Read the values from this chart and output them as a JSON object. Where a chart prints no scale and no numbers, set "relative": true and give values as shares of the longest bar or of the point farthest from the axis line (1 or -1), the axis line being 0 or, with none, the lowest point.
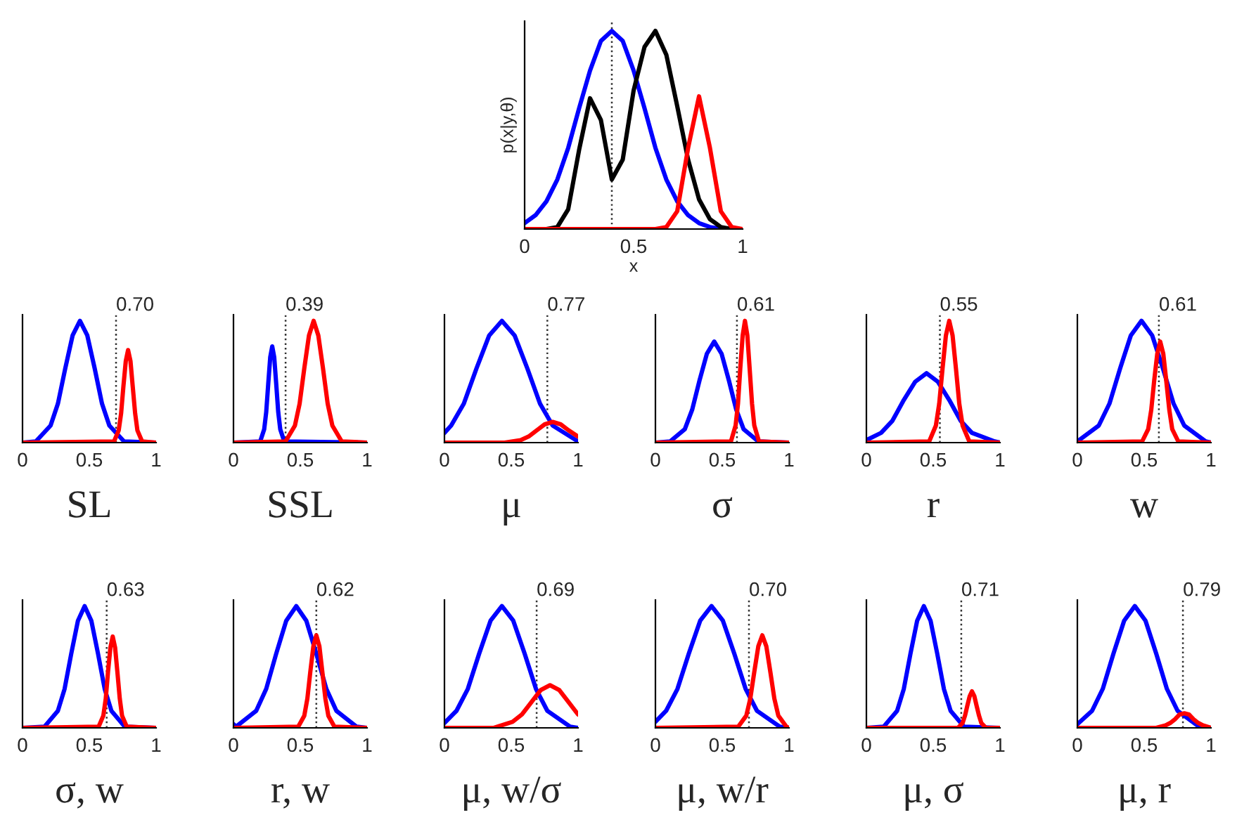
{
  "chart_data": [
    {
      "type": "line",
      "relative": true,
      "ylabel": "p(x|y,θ)",
      "xlabel": "x",
      "xlim": [
        0,
        1
      ],
      "xticks": [
        0,
        0.5,
        1
      ],
      "grid": false,
      "ref_lines": [
        {
          "axis": "x",
          "value": 0.4,
          "line_style": "dotted"
        }
      ],
      "series": [
        {
          "color": "#0000ff",
          "x": [
            0,
            0.05,
            0.1,
            0.15,
            0.2,
            0.25,
            0.3,
            0.35,
            0.4,
            0.45,
            0.5,
            0.55,
            0.6,
            0.65,
            0.7,
            0.75,
            0.8,
            0.85,
            0.9,
            0.95,
            1
          ],
          "values": [
            0.03,
            0.07,
            0.14,
            0.25,
            0.41,
            0.61,
            0.8,
            0.95,
            1,
            0.95,
            0.8,
            0.61,
            0.41,
            0.25,
            0.14,
            0.07,
            0.03,
            0.01,
            0,
            0,
            0
          ]
        },
        {
          "color": "#000000",
          "x": [
            0,
            0.05,
            0.1,
            0.15,
            0.2,
            0.25,
            0.3,
            0.35,
            0.4,
            0.45,
            0.5,
            0.55,
            0.6,
            0.65,
            0.7,
            0.75,
            0.8,
            0.85,
            0.9,
            0.95,
            1
          ],
          "values": [
            0,
            0,
            0,
            0.01,
            0.1,
            0.4,
            0.66,
            0.55,
            0.25,
            0.35,
            0.7,
            0.92,
            1,
            0.88,
            0.62,
            0.35,
            0.15,
            0.05,
            0.01,
            0,
            0
          ]
        },
        {
          "color": "#ff0000",
          "x": [
            0,
            0.6,
            0.65,
            0.7,
            0.75,
            0.8,
            0.85,
            0.9,
            0.95,
            1
          ],
          "values": [
            0,
            0,
            0.01,
            0.09,
            0.41,
            0.67,
            0.41,
            0.09,
            0.01,
            0
          ]
        }
      ]
    },
    {
      "type": "line",
      "relative": true,
      "xlabel": "SL",
      "xlim": [
        0,
        1
      ],
      "xticks": [
        0,
        0.5,
        1
      ],
      "grid": false,
      "ref_lines": [
        {
          "axis": "x",
          "value": 0.7,
          "label": "0.70",
          "line_style": "dotted"
        }
      ],
      "series": [
        {
          "color": "#0000ff",
          "x": [
            0,
            0.1,
            0.21,
            0.265,
            0.32,
            0.375,
            0.43,
            0.485,
            0.54,
            0.595,
            0.65,
            0.76,
            1
          ],
          "values": [
            0,
            0.01,
            0.14,
            0.32,
            0.61,
            0.88,
            1,
            0.88,
            0.61,
            0.32,
            0.14,
            0.01,
            0
          ]
        },
        {
          "color": "#ff0000",
          "x": [
            0,
            0.685,
            0.72,
            0.738,
            0.755,
            0.773,
            0.79,
            0.808,
            0.825,
            0.843,
            0.86,
            0.895,
            1
          ],
          "values": [
            0,
            0.01,
            0.1,
            0.24,
            0.46,
            0.67,
            0.76,
            0.67,
            0.46,
            0.24,
            0.1,
            0.01,
            0
          ]
        }
      ]
    },
    {
      "type": "line",
      "relative": true,
      "xlabel": "SSL",
      "xlim": [
        0,
        1
      ],
      "xticks": [
        0,
        0.5,
        1
      ],
      "grid": false,
      "ref_lines": [
        {
          "axis": "x",
          "value": 0.39,
          "label": "0.39",
          "line_style": "dotted"
        }
      ],
      "series": [
        {
          "color": "#0000ff",
          "x": [
            0,
            0.2,
            0.23,
            0.245,
            0.26,
            0.275,
            0.29,
            0.305,
            0.32,
            0.335,
            0.35,
            0.38,
            1
          ],
          "values": [
            0,
            0.01,
            0.11,
            0.25,
            0.48,
            0.7,
            0.79,
            0.7,
            0.48,
            0.25,
            0.11,
            0.01,
            0
          ]
        },
        {
          "color": "#ff0000",
          "x": [
            0,
            0.39,
            0.46,
            0.495,
            0.53,
            0.565,
            0.6,
            0.635,
            0.67,
            0.705,
            0.74,
            0.81,
            1
          ],
          "values": [
            0,
            0.01,
            0.14,
            0.32,
            0.61,
            0.88,
            1,
            0.88,
            0.61,
            0.32,
            0.14,
            0.01,
            0
          ]
        }
      ]
    },
    {
      "type": "line",
      "relative": true,
      "xlabel": "μ",
      "xlim": [
        0,
        1
      ],
      "xticks": [
        0,
        0.5,
        1
      ],
      "grid": false,
      "ref_lines": [
        {
          "axis": "x",
          "value": 0.77,
          "label": "0.77",
          "line_style": "dotted"
        }
      ],
      "series": [
        {
          "color": "#0000ff",
          "x": [
            0,
            0.05,
            0.145,
            0.24,
            0.335,
            0.43,
            0.525,
            0.62,
            0.715,
            0.81,
            1
          ],
          "values": [
            0.08,
            0.14,
            0.32,
            0.61,
            0.88,
            1,
            0.88,
            0.61,
            0.32,
            0.14,
            0.01
          ]
        },
        {
          "color": "#ff0000",
          "x": [
            0,
            0.45,
            0.57,
            0.63,
            0.69,
            0.75,
            0.81,
            0.87,
            0.93,
            1
          ],
          "values": [
            0,
            0,
            0.02,
            0.05,
            0.1,
            0.15,
            0.17,
            0.15,
            0.1,
            0.05
          ]
        }
      ]
    },
    {
      "type": "line",
      "relative": true,
      "xlabel": "σ",
      "xlim": [
        0,
        1
      ],
      "xticks": [
        0,
        0.5,
        1
      ],
      "grid": false,
      "ref_lines": [
        {
          "axis": "x",
          "value": 0.61,
          "label": "0.61",
          "line_style": "dotted"
        }
      ],
      "series": [
        {
          "color": "#0000ff",
          "x": [
            0,
            0.11,
            0.22,
            0.275,
            0.33,
            0.385,
            0.44,
            0.495,
            0.55,
            0.605,
            0.66,
            0.77,
            1
          ],
          "values": [
            0,
            0.01,
            0.11,
            0.27,
            0.51,
            0.73,
            0.83,
            0.73,
            0.51,
            0.27,
            0.11,
            0.01,
            0
          ]
        },
        {
          "color": "#ff0000",
          "x": [
            0,
            0.565,
            0.6,
            0.618,
            0.635,
            0.653,
            0.67,
            0.688,
            0.705,
            0.723,
            0.74,
            0.775,
            1
          ],
          "values": [
            0,
            0.01,
            0.14,
            0.32,
            0.61,
            0.88,
            1,
            0.88,
            0.61,
            0.32,
            0.14,
            0.01,
            0
          ]
        }
      ]
    },
    {
      "type": "line",
      "relative": true,
      "xlabel": "r",
      "xlim": [
        0,
        1
      ],
      "xticks": [
        0,
        0.5,
        1
      ],
      "grid": false,
      "ref_lines": [
        {
          "axis": "x",
          "value": 0.55,
          "label": "0.55",
          "line_style": "dotted"
        }
      ],
      "series": [
        {
          "color": "#0000ff",
          "x": [
            0,
            0.11,
            0.195,
            0.28,
            0.365,
            0.45,
            0.535,
            0.62,
            0.705,
            0.79,
            0.96,
            1
          ],
          "values": [
            0.02,
            0.08,
            0.18,
            0.35,
            0.5,
            0.57,
            0.5,
            0.35,
            0.18,
            0.08,
            0.01,
            0
          ]
        },
        {
          "color": "#ff0000",
          "x": [
            0,
            0.47,
            0.52,
            0.545,
            0.57,
            0.595,
            0.62,
            0.645,
            0.67,
            0.695,
            0.72,
            0.77,
            1
          ],
          "values": [
            0,
            0.01,
            0.14,
            0.32,
            0.61,
            0.88,
            1,
            0.88,
            0.61,
            0.32,
            0.14,
            0.01,
            0
          ]
        }
      ]
    },
    {
      "type": "line",
      "relative": true,
      "xlabel": "w",
      "xlim": [
        0,
        1
      ],
      "xticks": [
        0,
        0.5,
        1
      ],
      "grid": false,
      "ref_lines": [
        {
          "axis": "x",
          "value": 0.61,
          "label": "0.61",
          "line_style": "dotted"
        }
      ],
      "series": [
        {
          "color": "#0000ff",
          "x": [
            0,
            0.16,
            0.24,
            0.32,
            0.4,
            0.48,
            0.56,
            0.64,
            0.72,
            0.8,
            0.96,
            1
          ],
          "values": [
            0.01,
            0.14,
            0.32,
            0.61,
            0.88,
            1,
            0.88,
            0.61,
            0.32,
            0.14,
            0.01,
            0
          ]
        },
        {
          "color": "#ff0000",
          "x": [
            0,
            0.485,
            0.53,
            0.553,
            0.575,
            0.598,
            0.62,
            0.643,
            0.665,
            0.688,
            0.71,
            0.755,
            1
          ],
          "values": [
            0,
            0.01,
            0.11,
            0.27,
            0.51,
            0.73,
            0.83,
            0.73,
            0.51,
            0.27,
            0.11,
            0.01,
            0
          ]
        }
      ]
    },
    {
      "type": "line",
      "relative": true,
      "xlabel": "σ, w",
      "xlim": [
        0,
        1
      ],
      "xticks": [
        0,
        0.5,
        1
      ],
      "grid": false,
      "ref_lines": [
        {
          "axis": "x",
          "value": 0.63,
          "label": "0.63",
          "line_style": "dotted"
        }
      ],
      "series": [
        {
          "color": "#0000ff",
          "x": [
            0,
            0.165,
            0.265,
            0.315,
            0.365,
            0.415,
            0.465,
            0.515,
            0.565,
            0.615,
            0.665,
            0.765,
            1
          ],
          "values": [
            0,
            0.01,
            0.14,
            0.32,
            0.61,
            0.88,
            1,
            0.88,
            0.61,
            0.32,
            0.14,
            0.01,
            0
          ]
        },
        {
          "color": "#ff0000",
          "x": [
            0,
            0.57,
            0.605,
            0.623,
            0.64,
            0.658,
            0.675,
            0.693,
            0.71,
            0.728,
            0.745,
            0.78,
            1
          ],
          "values": [
            0,
            0.01,
            0.1,
            0.24,
            0.46,
            0.66,
            0.75,
            0.66,
            0.46,
            0.24,
            0.1,
            0.01,
            0
          ]
        }
      ]
    },
    {
      "type": "line",
      "relative": true,
      "xlabel": "r, w",
      "xlim": [
        0,
        1
      ],
      "xticks": [
        0,
        0.5,
        1
      ],
      "grid": false,
      "ref_lines": [
        {
          "axis": "x",
          "value": 0.62,
          "label": "0.62",
          "line_style": "dotted"
        }
      ],
      "series": [
        {
          "color": "#0000ff",
          "x": [
            0,
            0.02,
            0.17,
            0.245,
            0.32,
            0.395,
            0.47,
            0.545,
            0.62,
            0.695,
            0.77,
            0.92,
            1
          ],
          "values": [
            0.03,
            0.01,
            0.14,
            0.32,
            0.61,
            0.88,
            1,
            0.88,
            0.61,
            0.32,
            0.14,
            0.01,
            0
          ]
        },
        {
          "color": "#ff0000",
          "x": [
            0,
            0.485,
            0.53,
            0.553,
            0.575,
            0.598,
            0.62,
            0.643,
            0.665,
            0.688,
            0.71,
            0.755,
            1
          ],
          "values": [
            0,
            0.01,
            0.1,
            0.24,
            0.46,
            0.67,
            0.76,
            0.67,
            0.46,
            0.24,
            0.1,
            0.01,
            0
          ]
        }
      ]
    },
    {
      "type": "line",
      "relative": true,
      "xlabel": "μ, w/σ",
      "xlim": [
        0,
        1
      ],
      "xticks": [
        0,
        0.5,
        1
      ],
      "grid": false,
      "ref_lines": [
        {
          "axis": "x",
          "value": 0.69,
          "label": "0.69",
          "line_style": "dotted"
        }
      ],
      "series": [
        {
          "color": "#0000ff",
          "x": [
            0,
            0.09,
            0.175,
            0.26,
            0.345,
            0.43,
            0.515,
            0.6,
            0.685,
            0.77,
            0.94,
            1
          ],
          "values": [
            0.04,
            0.14,
            0.32,
            0.61,
            0.88,
            1,
            0.88,
            0.61,
            0.32,
            0.14,
            0.01,
            0
          ]
        },
        {
          "color": "#ff0000",
          "x": [
            0,
            0.37,
            0.51,
            0.58,
            0.65,
            0.72,
            0.79,
            0.86,
            0.93,
            1
          ],
          "values": [
            0,
            0,
            0.05,
            0.11,
            0.21,
            0.31,
            0.35,
            0.31,
            0.21,
            0.11
          ]
        }
      ]
    },
    {
      "type": "line",
      "relative": true,
      "xlabel": "μ, w/r",
      "xlim": [
        0,
        1
      ],
      "xticks": [
        0,
        0.5,
        1
      ],
      "grid": false,
      "ref_lines": [
        {
          "axis": "x",
          "value": 0.7,
          "label": "0.70",
          "line_style": "dotted"
        }
      ],
      "series": [
        {
          "color": "#0000ff",
          "x": [
            0,
            0.08,
            0.165,
            0.25,
            0.335,
            0.42,
            0.505,
            0.59,
            0.675,
            0.76,
            0.93,
            1
          ],
          "values": [
            0.05,
            0.14,
            0.32,
            0.61,
            0.88,
            1,
            0.88,
            0.61,
            0.32,
            0.14,
            0.01,
            0
          ]
        },
        {
          "color": "#ff0000",
          "x": [
            0,
            0.62,
            0.68,
            0.71,
            0.74,
            0.77,
            0.8,
            0.83,
            0.86,
            0.89,
            0.92,
            0.98,
            1
          ],
          "values": [
            0,
            0.01,
            0.1,
            0.24,
            0.46,
            0.67,
            0.76,
            0.67,
            0.46,
            0.24,
            0.1,
            0.01,
            0
          ]
        }
      ]
    },
    {
      "type": "line",
      "relative": true,
      "xlabel": "μ, σ",
      "xlim": [
        0,
        1
      ],
      "xticks": [
        0,
        0.5,
        1
      ],
      "grid": false,
      "ref_lines": [
        {
          "axis": "x",
          "value": 0.71,
          "label": "0.71",
          "line_style": "dotted"
        }
      ],
      "series": [
        {
          "color": "#0000ff",
          "x": [
            0,
            0.13,
            0.23,
            0.28,
            0.33,
            0.38,
            0.43,
            0.48,
            0.53,
            0.58,
            0.63,
            0.73,
            1
          ],
          "values": [
            0,
            0.01,
            0.14,
            0.32,
            0.61,
            0.88,
            1,
            0.88,
            0.61,
            0.32,
            0.14,
            0.01,
            0
          ]
        },
        {
          "color": "#ff0000",
          "x": [
            0,
            0.685,
            0.72,
            0.738,
            0.755,
            0.773,
            0.79,
            0.808,
            0.825,
            0.843,
            0.86,
            0.895,
            1
          ],
          "values": [
            0,
            0,
            0.04,
            0.1,
            0.18,
            0.26,
            0.3,
            0.26,
            0.18,
            0.1,
            0.04,
            0,
            0
          ]
        }
      ]
    },
    {
      "type": "line",
      "relative": true,
      "xlabel": "μ, r",
      "xlim": [
        0,
        1
      ],
      "xticks": [
        0,
        0.5,
        1
      ],
      "grid": false,
      "ref_lines": [
        {
          "axis": "x",
          "value": 0.79,
          "label": "0.79",
          "line_style": "dotted"
        }
      ],
      "series": [
        {
          "color": "#0000ff",
          "x": [
            0,
            0.11,
            0.19,
            0.27,
            0.35,
            0.43,
            0.51,
            0.59,
            0.67,
            0.75,
            0.91,
            1
          ],
          "values": [
            0.03,
            0.14,
            0.32,
            0.61,
            0.88,
            1,
            0.88,
            0.61,
            0.32,
            0.14,
            0.01,
            0
          ]
        },
        {
          "color": "#ff0000",
          "x": [
            0,
            0.59,
            0.66,
            0.695,
            0.73,
            0.765,
            0.8,
            0.835,
            0.87,
            0.905,
            0.94,
            1
          ],
          "values": [
            0,
            0,
            0.02,
            0.04,
            0.07,
            0.11,
            0.12,
            0.11,
            0.07,
            0.04,
            0.02,
            0
          ]
        }
      ]
    }
  ]
}
